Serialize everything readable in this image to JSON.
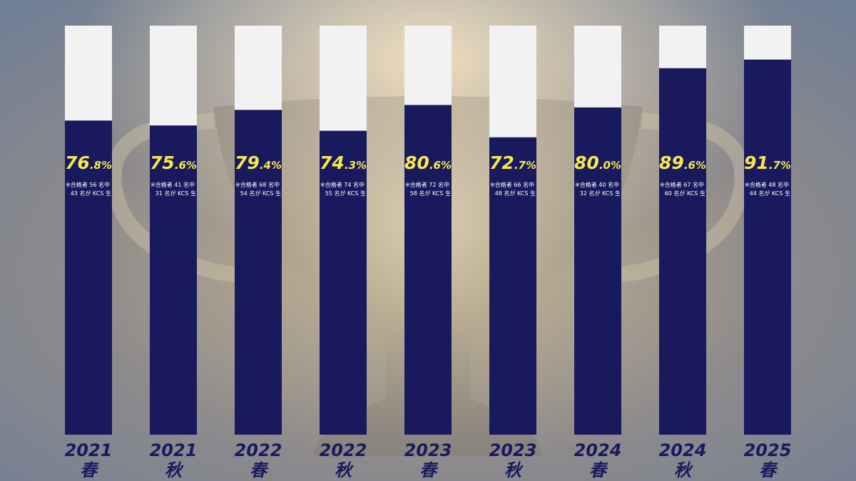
{
  "colors": {
    "bar_fill": "#191a5e",
    "bar_track": "#f2f2f2",
    "percent_text": "#f7e84a",
    "note_text": "#ffffff",
    "label_text": "#191a5e"
  },
  "chart_data": {
    "type": "bar",
    "title": "",
    "xlabel": "",
    "ylabel": "",
    "ylim": [
      0,
      100
    ],
    "grid": false,
    "legend": "none",
    "categories": [
      {
        "year": "2021",
        "season": "春"
      },
      {
        "year": "2021",
        "season": "秋"
      },
      {
        "year": "2022",
        "season": "春"
      },
      {
        "year": "2022",
        "season": "秋"
      },
      {
        "year": "2023",
        "season": "春"
      },
      {
        "year": "2023",
        "season": "秋"
      },
      {
        "year": "2024",
        "season": "春"
      },
      {
        "year": "2024",
        "season": "秋"
      },
      {
        "year": "2025",
        "season": "春"
      }
    ],
    "series": [
      {
        "values": [
          76.8,
          75.6,
          79.4,
          74.3,
          80.6,
          72.7,
          80.0,
          89.6,
          91.7
        ]
      }
    ],
    "data_labels": [
      {
        "int": "76",
        "dec": ".8%",
        "note1": "※合格者 56 名中",
        "note2": "43 名が KCS 生"
      },
      {
        "int": "75",
        "dec": ".6%",
        "note1": "※合格者 41 名中",
        "note2": "31 名が KCS 生"
      },
      {
        "int": "79",
        "dec": ".4%",
        "note1": "※合格者 68 名中",
        "note2": "54 名が KCS 生"
      },
      {
        "int": "74",
        "dec": ".3%",
        "note1": "※合格者 74 名中",
        "note2": "55 名が KCS 生"
      },
      {
        "int": "80",
        "dec": ".6%",
        "note1": "※合格者 72 名中",
        "note2": "58 名が KCS 生"
      },
      {
        "int": "72",
        "dec": ".7%",
        "note1": "※合格者 66 名中",
        "note2": "48 名が KCS 生"
      },
      {
        "int": "80",
        "dec": ".0%",
        "note1": "※合格者 40 名中",
        "note2": "32 名が KCS 生"
      },
      {
        "int": "89",
        "dec": ".6%",
        "note1": "※合格者 67 名中",
        "note2": "60 名が KCS 生"
      },
      {
        "int": "91",
        "dec": ".7%",
        "note1": "※合格者 48 名中",
        "note2": "44 名が KCS 生"
      }
    ]
  }
}
